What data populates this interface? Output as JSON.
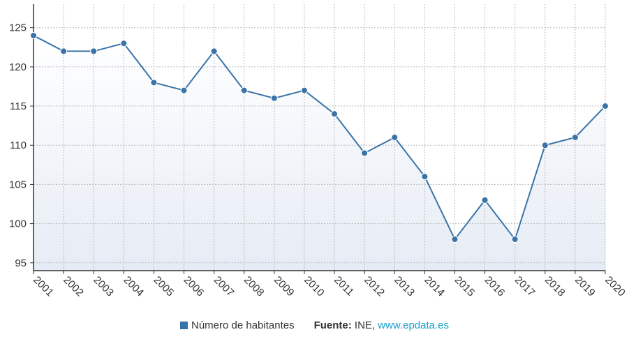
{
  "chart_data": {
    "type": "area",
    "x": [
      "2001",
      "2002",
      "2003",
      "2004",
      "2005",
      "2006",
      "2007",
      "2008",
      "2009",
      "2010",
      "2011",
      "2012",
      "2013",
      "2014",
      "2015",
      "2016",
      "2017",
      "2018",
      "2019",
      "2020"
    ],
    "series": [
      {
        "name": "Número de habitantes",
        "values": [
          124,
          122,
          122,
          123,
          118,
          117,
          122,
          117,
          116,
          117,
          114,
          109,
          111,
          106,
          98,
          103,
          98,
          110,
          111,
          115
        ]
      }
    ],
    "yticks": [
      95,
      100,
      105,
      110,
      115,
      120,
      125
    ],
    "ylim": [
      94,
      128
    ],
    "grid": true,
    "legend_position": "bottom"
  },
  "legend": {
    "label": "Número de habitantes"
  },
  "source": {
    "prefix": "Fuente:",
    "name": " INE, ",
    "link": "www.epdata.es"
  },
  "colors": {
    "line": "#3a73a8",
    "link": "#1aa0c8",
    "grid": "#bbbbbb",
    "axis": "#333333"
  }
}
